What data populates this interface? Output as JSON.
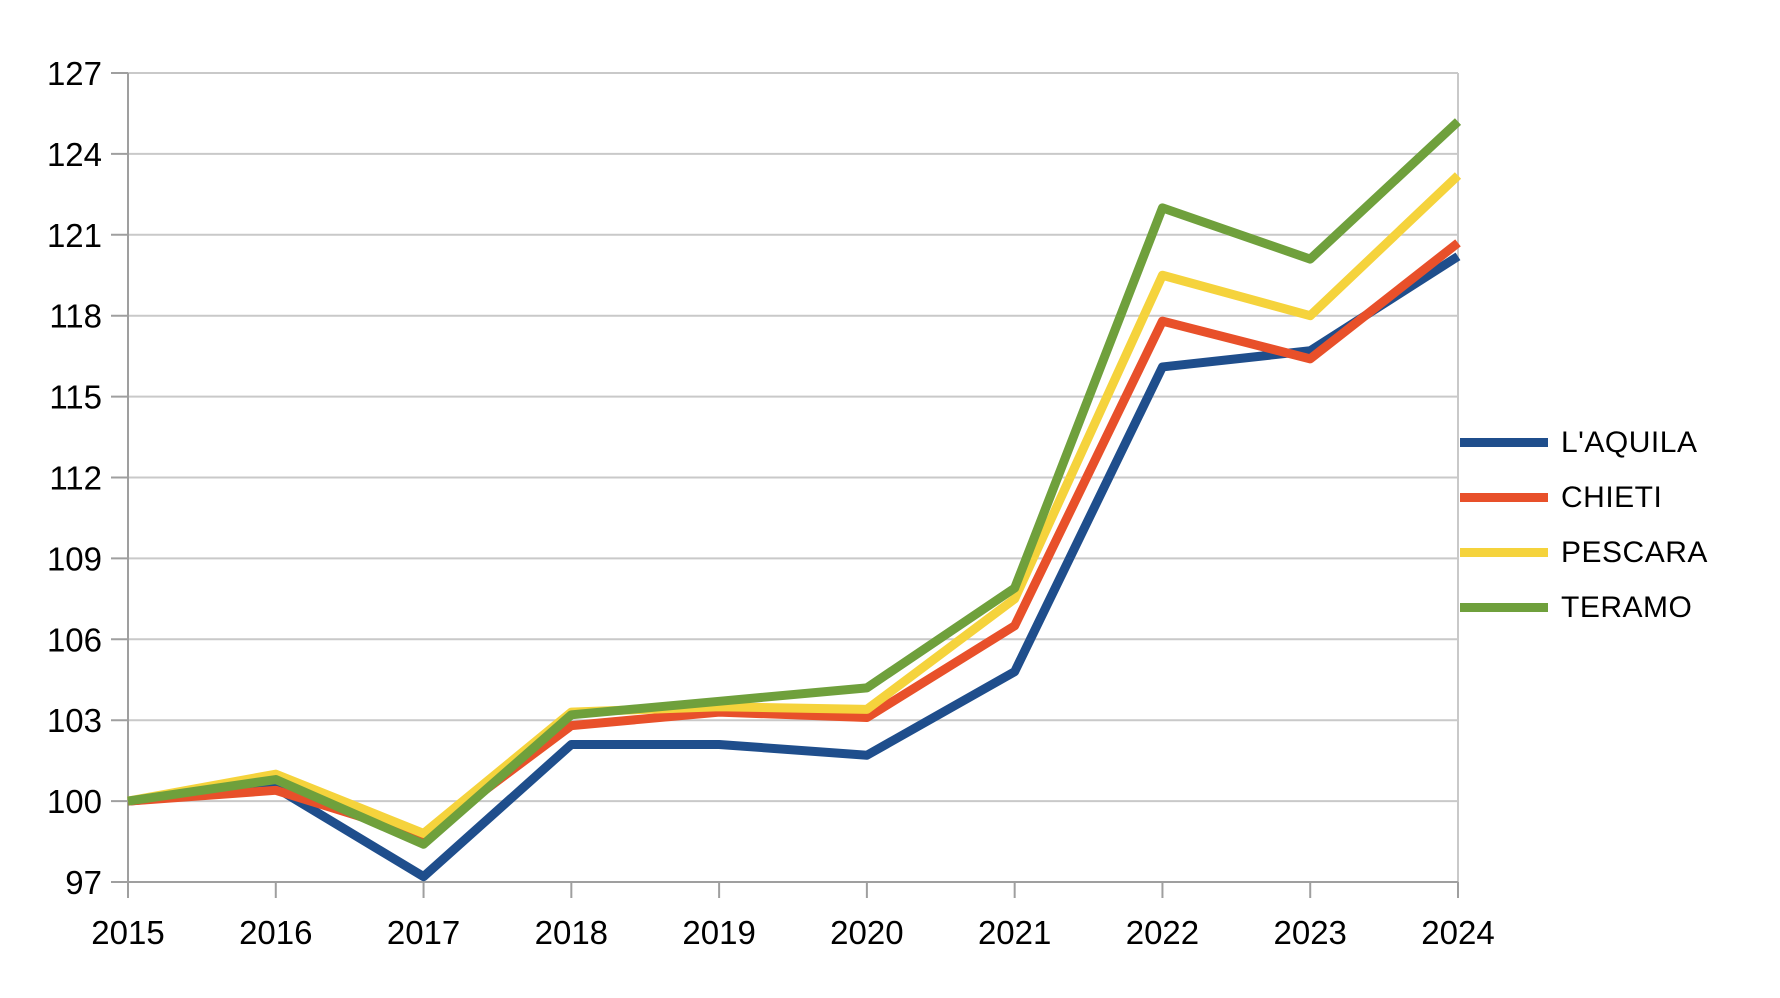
{
  "chart_data": {
    "type": "line",
    "title": "",
    "xlabel": "",
    "ylabel": "",
    "categories": [
      "2015",
      "2016",
      "2017",
      "2018",
      "2019",
      "2020",
      "2021",
      "2022",
      "2023",
      "2024"
    ],
    "series": [
      {
        "name": "L'AQUILA",
        "color": "#1F4E8C",
        "values": [
          100.0,
          100.5,
          97.2,
          102.1,
          102.1,
          101.7,
          104.8,
          116.1,
          116.7,
          120.2
        ]
      },
      {
        "name": "CHIETI",
        "color": "#E8502A",
        "values": [
          100.0,
          100.4,
          98.7,
          102.8,
          103.3,
          103.1,
          106.5,
          117.8,
          116.4,
          120.7
        ]
      },
      {
        "name": "PESCARA",
        "color": "#F5D33C",
        "values": [
          100.0,
          101.0,
          98.8,
          103.3,
          103.5,
          103.4,
          107.5,
          119.5,
          118.0,
          123.2
        ]
      },
      {
        "name": "TERAMO",
        "color": "#6FA03C",
        "values": [
          100.0,
          100.8,
          98.4,
          103.2,
          103.7,
          104.2,
          107.9,
          122.0,
          120.1,
          125.2
        ]
      }
    ],
    "ylim": [
      97,
      127
    ],
    "yticks": [
      97,
      100,
      103,
      106,
      109,
      112,
      115,
      118,
      121,
      124,
      127
    ],
    "grid": true,
    "legend_position": "right",
    "colors": {
      "gridline": "#C9C9C9",
      "axis": "#9F9F9F",
      "label_text": "#000000",
      "background": "#FFFFFF"
    }
  }
}
